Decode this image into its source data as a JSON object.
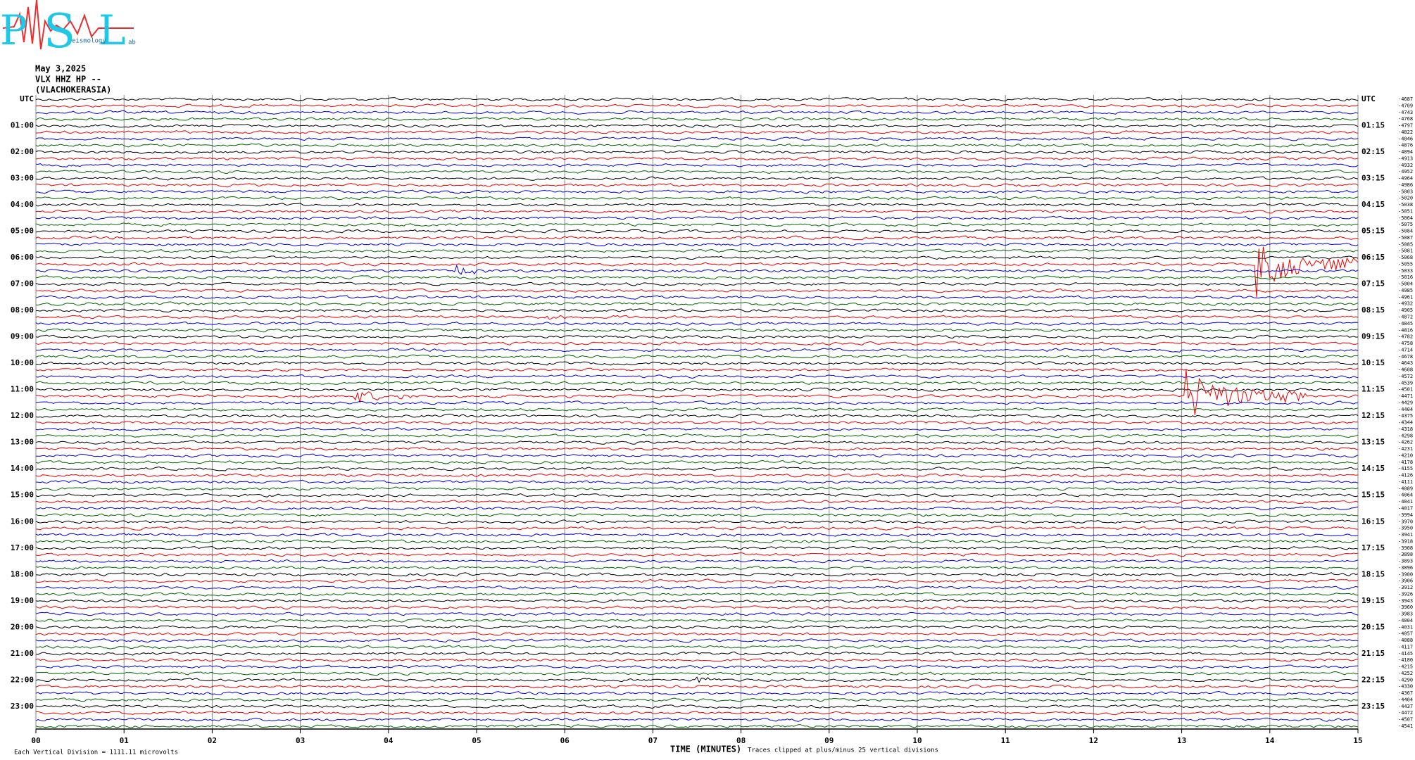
{
  "logo": {
    "p": "P",
    "s": "S",
    "l": "L",
    "word1": "eismology",
    "word2": "ab"
  },
  "header": {
    "date": "May 3,2025",
    "station": "VLX HHZ HP --",
    "site": "(VLACHOKERASIA)"
  },
  "left_labels": [
    "UTC",
    "01:00",
    "02:00",
    "03:00",
    "04:00",
    "05:00",
    "06:00",
    "07:00",
    "08:00",
    "09:00",
    "10:00",
    "11:00",
    "12:00",
    "13:00",
    "14:00",
    "15:00",
    "16:00",
    "17:00",
    "18:00",
    "19:00",
    "20:00",
    "21:00",
    "22:00",
    "23:00"
  ],
  "right_labels": [
    "UTC",
    "01:15",
    "02:15",
    "03:15",
    "04:15",
    "05:15",
    "06:15",
    "07:15",
    "08:15",
    "09:15",
    "10:15",
    "11:15",
    "12:15",
    "13:15",
    "14:15",
    "15:15",
    "16:15",
    "17:15",
    "18:15",
    "19:15",
    "20:15",
    "21:15",
    "22:15",
    "23:15"
  ],
  "trace_offsets": [
    -4687,
    -4709,
    -4743,
    -4768,
    -4797,
    -4822,
    -4846,
    -4876,
    -4894,
    -4913,
    -4932,
    -4952,
    -4964,
    -4986,
    -5003,
    -5020,
    -5038,
    -5051,
    -5064,
    -5075,
    -5084,
    -5087,
    -5085,
    -5081,
    -5068,
    -5055,
    -5033,
    -5016,
    -5004,
    -4985,
    -4961,
    -4932,
    -4905,
    -4872,
    -4845,
    -4816,
    -4782,
    -4758,
    -4714,
    -4678,
    -4643,
    -4608,
    -4572,
    -4539,
    -4501,
    -4471,
    -4429,
    -4404,
    -4375,
    -4344,
    -4318,
    -4298,
    -4262,
    -4231,
    -4210,
    -4178,
    -4155,
    -4126,
    -4111,
    -4089,
    -4064,
    -4041,
    -4017,
    -3994,
    -3970,
    -3950,
    -3941,
    -3918,
    -3908,
    -3898,
    -3893,
    -3896,
    -3900,
    -3906,
    -3912,
    -3926,
    -3943,
    -3960,
    -3983,
    -4004,
    -4031,
    -4057,
    -4088,
    -4117,
    -4145,
    -4180,
    -4215,
    -4252,
    -4290,
    -4330,
    -4367,
    -4404,
    -4437,
    -4472,
    -4507,
    -4541
  ],
  "x_ticks": [
    "00",
    "01",
    "02",
    "03",
    "04",
    "05",
    "06",
    "07",
    "08",
    "09",
    "10",
    "11",
    "12",
    "13",
    "14",
    "15"
  ],
  "footer": {
    "division": "Each Vertical Division = 1111.11 microvolts",
    "axis_title": "TIME (MINUTES)",
    "clip": "Traces clipped at plus/minus 25 vertical divisions"
  }
}
